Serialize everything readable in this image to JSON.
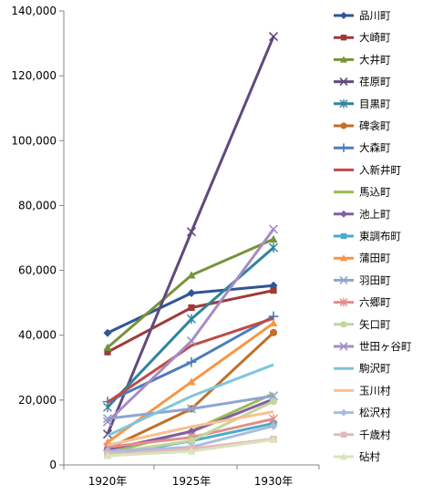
{
  "chart_data": {
    "type": "line",
    "title": "",
    "xlabel": "",
    "ylabel": "",
    "categories": [
      "1920年",
      "1925年",
      "1930年"
    ],
    "ylim": [
      0,
      140000
    ],
    "yticks": [
      0,
      20000,
      40000,
      60000,
      80000,
      100000,
      120000,
      140000
    ],
    "ytick_labels": [
      "0",
      "20,000",
      "40,000",
      "60,000",
      "80,000",
      "100,000",
      "120,000",
      "140,000"
    ],
    "grid": false,
    "legend": "right",
    "series": [
      {
        "name": "品川町",
        "values": [
          40700,
          53000,
          55300
        ],
        "color": "#2F5597",
        "marker": "diamond"
      },
      {
        "name": "大崎町",
        "values": [
          34800,
          48500,
          53800
        ],
        "color": "#9E3A38",
        "marker": "square"
      },
      {
        "name": "大井町",
        "values": [
          36200,
          58500,
          69600
        ],
        "color": "#77933C",
        "marker": "triangle"
      },
      {
        "name": "荏原町",
        "values": [
          9500,
          71900,
          132100
        ],
        "color": "#604A7B",
        "marker": "x"
      },
      {
        "name": "目黒町",
        "values": [
          17800,
          45000,
          67000
        ],
        "color": "#31849B",
        "marker": "star"
      },
      {
        "name": "碑衾町",
        "values": [
          5000,
          17300,
          40800
        ],
        "color": "#C0702B",
        "marker": "circle"
      },
      {
        "name": "大森町",
        "values": [
          19500,
          31700,
          45800
        ],
        "color": "#4A7EBB",
        "marker": "plus"
      },
      {
        "name": "入新井町",
        "values": [
          19300,
          36800,
          45200
        ],
        "color": "#BE4B48",
        "marker": "none"
      },
      {
        "name": "馬込町",
        "values": [
          3600,
          10500,
          22000
        ],
        "color": "#9BBB59",
        "marker": "none"
      },
      {
        "name": "池上町",
        "values": [
          4700,
          10300,
          20300
        ],
        "color": "#7F5FA3",
        "marker": "diamond"
      },
      {
        "name": "東調布町",
        "values": [
          3000,
          7400,
          12800
        ],
        "color": "#4BACC6",
        "marker": "square"
      },
      {
        "name": "蒲田町",
        "values": [
          7000,
          25600,
          43700
        ],
        "color": "#F79646",
        "marker": "triangle"
      },
      {
        "name": "羽田町",
        "values": [
          14300,
          17300,
          21300
        ],
        "color": "#8EA5D2",
        "marker": "x"
      },
      {
        "name": "六郷町",
        "values": [
          5500,
          8500,
          14200
        ],
        "color": "#E38E8B",
        "marker": "star"
      },
      {
        "name": "矢口町",
        "values": [
          3600,
          7500,
          19600
        ],
        "color": "#C3D69B",
        "marker": "circle"
      },
      {
        "name": "世田ヶ谷町",
        "values": [
          13300,
          38200,
          72700
        ],
        "color": "#A68CC4",
        "marker": "x"
      },
      {
        "name": "駒沢町",
        "values": [
          9000,
          21200,
          30900
        ],
        "color": "#7FC6DA",
        "marker": "none"
      },
      {
        "name": "玉川村",
        "values": [
          6100,
          11800,
          16400
        ],
        "color": "#FAC090",
        "marker": "none"
      },
      {
        "name": "松沢村",
        "values": [
          4200,
          5500,
          12000
        ],
        "color": "#A9BCDD",
        "marker": "diamond"
      },
      {
        "name": "千歳村",
        "values": [
          3200,
          5000,
          8000
        ],
        "color": "#E6B9B8",
        "marker": "square"
      },
      {
        "name": "砧村",
        "values": [
          2800,
          4200,
          7800
        ],
        "color": "#D7E4BD",
        "marker": "triangle"
      }
    ]
  }
}
